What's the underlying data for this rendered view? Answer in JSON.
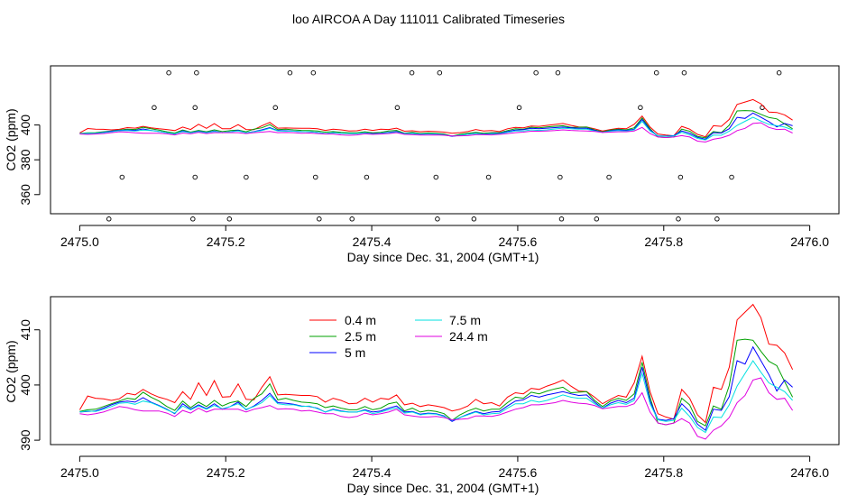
{
  "title": "loo AIRCOA A  Day 111011  Calibrated Timeseries",
  "chart_data": [
    {
      "type": "scatter",
      "xlabel": "Day since Dec. 31, 2004 (GMT+1)",
      "ylabel": "CO2 (ppm)",
      "xlim": [
        2474.96,
        2476.04
      ],
      "ylim": [
        349,
        434
      ],
      "x_ticks": [
        "2475.0",
        "2475.2",
        "2475.4",
        "2475.6",
        "2475.8",
        "2476.0"
      ],
      "y_ticks": [
        "360",
        "380",
        "400"
      ],
      "grid": false,
      "points": [
        [
          2475.04,
          346
        ],
        [
          2475.058,
          370
        ],
        [
          2475.102,
          410
        ],
        [
          2475.122,
          430
        ],
        [
          2475.155,
          346
        ],
        [
          2475.158,
          370
        ],
        [
          2475.158,
          410
        ],
        [
          2475.16,
          430
        ],
        [
          2475.205,
          346
        ],
        [
          2475.228,
          370
        ],
        [
          2475.268,
          410
        ],
        [
          2475.288,
          430
        ],
        [
          2475.32,
          430
        ],
        [
          2475.323,
          370
        ],
        [
          2475.328,
          346
        ],
        [
          2475.373,
          346
        ],
        [
          2475.393,
          370
        ],
        [
          2475.435,
          410
        ],
        [
          2475.455,
          430
        ],
        [
          2475.488,
          370
        ],
        [
          2475.49,
          346
        ],
        [
          2475.493,
          430
        ],
        [
          2475.54,
          346
        ],
        [
          2475.56,
          370
        ],
        [
          2475.602,
          410
        ],
        [
          2475.625,
          430
        ],
        [
          2475.655,
          430
        ],
        [
          2475.658,
          370
        ],
        [
          2475.66,
          346
        ],
        [
          2475.708,
          346
        ],
        [
          2475.725,
          370
        ],
        [
          2475.768,
          410
        ],
        [
          2475.79,
          430
        ],
        [
          2475.82,
          346
        ],
        [
          2475.823,
          370
        ],
        [
          2475.828,
          430
        ],
        [
          2475.873,
          346
        ],
        [
          2475.893,
          370
        ],
        [
          2475.935,
          410
        ],
        [
          2475.958,
          430
        ]
      ],
      "series": [
        {
          "name": "0.4 m",
          "color": "#ff0000",
          "values": [
            395.5,
            398,
            397.6,
            397.5,
            397.2,
            397.5,
            398.5,
            398.2,
            399.2,
            398.4,
            397.8,
            397.4,
            396.8,
            398.8,
            397.4,
            400.4,
            398.1,
            400.8,
            397.8,
            397.9,
            400.2,
            397.4,
            397.3,
            399.6,
            401.5,
            398.2,
            398.3,
            398.2,
            398.1,
            398.1,
            397.9,
            396.9,
            397.6,
            397.2,
            396.6,
            396.7,
            397.6,
            396.9,
            397.6,
            397.4,
            398.2,
            396.4,
            396.7,
            396.1,
            396.4,
            396.2,
            395.9,
            395.3,
            395.6,
            396.2,
            397.4,
            396.6,
            396.8,
            396.2,
            397.8,
            398.6,
            398.4,
            399.4,
            399.2,
            399.8,
            400.3,
            400.9,
            399.8,
            398.9,
            398.8,
            397.8,
            396.6,
            397.4,
            398.1,
            397.8,
            400.4,
            405.2,
            398.8,
            394.8,
            394.2,
            393.8,
            399.2,
            397.6,
            394.6,
            393.2,
            399.6,
            399.2,
            403.2,
            411.8,
            413.2,
            414.6,
            412.2,
            407.4,
            407.2,
            405.8,
            402.8
          ]
        },
        {
          "name": "2.5 m",
          "color": "#00a000",
          "values": [
            395.2,
            395.5,
            395.6,
            396.1,
            396.6,
            397.1,
            397.6,
            397.4,
            398.7,
            397.8,
            397.1,
            396.1,
            395.4,
            397.1,
            395.9,
            396.9,
            396.1,
            397.2,
            396.2,
            396.8,
            397.1,
            396.1,
            397.6,
            398.4,
            400.2,
            397.3,
            397.6,
            397.2,
            396.9,
            396.8,
            396.6,
            395.9,
            396.2,
            395.8,
            395.5,
            395.5,
            396.1,
            395.5,
            395.8,
            396.6,
            396.9,
            395.3,
            395.8,
            395.1,
            395.4,
            395.2,
            394.8,
            393.6,
            394.6,
            395.3,
            395.8,
            395.3,
            395.6,
            395.6,
            396.8,
            397.8,
            397.6,
            398.7,
            398.4,
            398.9,
            399.3,
            399.6,
            398.6,
            398.7,
            398.8,
            397.2,
            396.1,
            397.1,
            397.6,
            397.2,
            398.4,
            404.1,
            397.8,
            393.1,
            392.8,
            393.1,
            397.6,
            396.4,
            393.4,
            392.6,
            396.2,
            395.6,
            399.9,
            408.1,
            408.3,
            408.1,
            406.1,
            404.3,
            403.5,
            400.6,
            397.8
          ]
        },
        {
          "name": "5 m",
          "color": "#0000ff",
          "values": [
            395.1,
            395.2,
            395.3,
            395.8,
            396.4,
            396.9,
            397.1,
            396.9,
            397.7,
            396.9,
            396.3,
            395.6,
            394.8,
            396.6,
            395.6,
            396.4,
            395.7,
            396.6,
            395.6,
            396.1,
            396.9,
            395.5,
            396.2,
            397.2,
            398.5,
            396.8,
            396.7,
            396.5,
            396.2,
            396.1,
            395.8,
            395.1,
            395.6,
            395.3,
            395.1,
            395.1,
            395.5,
            395.1,
            395.3,
            395.8,
            396.2,
            395.1,
            395.2,
            394.7,
            394.9,
            394.8,
            394.4,
            393.4,
            394.1,
            394.7,
            395.2,
            394.8,
            395.1,
            395.2,
            396.2,
            397.1,
            397.3,
            398.1,
            397.8,
            398.2,
            398.5,
            398.8,
            398.4,
            398.1,
            398.2,
            396.9,
            395.8,
            396.7,
            397.2,
            396.8,
            397.6,
            403.2,
            397.1,
            393.8,
            393.6,
            393.9,
            396.6,
            395.2,
            392.9,
            391.8,
            395.6,
            395.4,
            397.9,
            404.4,
            403.8,
            406.9,
            404.4,
            401.9,
            398.9,
            400.9,
            399.6
          ]
        },
        {
          "name": "7.5 m",
          "color": "#00e0e0",
          "values": [
            395.1,
            395.3,
            395.2,
            395.6,
            396.1,
            396.7,
            396.8,
            396.5,
            397.1,
            396.8,
            396.2,
            395.5,
            394.9,
            396.2,
            395.5,
            396.2,
            395.6,
            396.3,
            395.7,
            396.1,
            396.6,
            395.6,
            396.1,
            396.8,
            398.1,
            396.6,
            396.4,
            396.4,
            396.1,
            396.2,
            395.7,
            395.1,
            395.5,
            395.2,
            395.1,
            395.1,
            395.4,
            394.8,
            395.1,
            395.5,
            395.9,
            394.9,
            395.1,
            394.6,
            394.8,
            394.7,
            394.3,
            393.6,
            394.1,
            394.6,
            395.1,
            394.6,
            394.8,
            394.9,
            395.8,
            396.6,
            396.6,
            397.2,
            396.9,
            397.2,
            397.7,
            398.2,
            397.8,
            397.6,
            397.6,
            396.6,
            395.8,
            396.4,
            396.8,
            396.5,
            397.2,
            402.1,
            396.6,
            393.7,
            393.4,
            393.6,
            395.8,
            394.3,
            392.3,
            391.4,
            394.2,
            394.1,
            396.4,
            399.8,
            402.1,
            404.4,
            402.3,
            400.4,
            399.6,
            398.8,
            397.2
          ]
        },
        {
          "name": "24.4 m",
          "color": "#e000e0",
          "values": [
            394.8,
            394.6,
            394.8,
            395.1,
            395.6,
            396.1,
            395.9,
            395.5,
            395.3,
            395.3,
            395.3,
            394.9,
            394.3,
            395.4,
            394.9,
            395.8,
            395.1,
            395.6,
            395.6,
            395.6,
            395.6,
            395.1,
            395.6,
            395.9,
            396.3,
            395.6,
            395.7,
            395.6,
            395.3,
            395.4,
            395.1,
            394.8,
            394.8,
            394.3,
            394.1,
            394.3,
            394.9,
            394.6,
            394.8,
            395.1,
            395.6,
            394.6,
            394.4,
            394.2,
            394.2,
            394.3,
            394.1,
            393.7,
            393.8,
            393.9,
            394.4,
            394.4,
            394.3,
            394.6,
            395.1,
            395.6,
            395.9,
            396.4,
            396.4,
            396.6,
            396.8,
            397.2,
            396.9,
            396.7,
            396.6,
            396.3,
            395.7,
            395.9,
            396.1,
            396.1,
            396.6,
            398.6,
            395.1,
            393.1,
            392.8,
            393.1,
            393.9,
            393.1,
            390.7,
            390.2,
            391.8,
            392.6,
            394.1,
            396.8,
            398.1,
            400.9,
            401.3,
            398.6,
            397.4,
            397.6,
            395.4
          ]
        }
      ]
    },
    {
      "type": "line",
      "xlabel": "Day since Dec. 31, 2004 (GMT+1)",
      "ylabel": "CO2 (ppm)",
      "xlim": [
        2474.96,
        2476.04
      ],
      "ylim": [
        389.2,
        416
      ],
      "x_ticks": [
        "2475.0",
        "2475.2",
        "2475.4",
        "2475.6",
        "2475.8",
        "2476.0"
      ],
      "y_ticks": [
        "390",
        "400",
        "410"
      ],
      "grid": false,
      "legend_position": "top-left",
      "legend": [
        "0.4 m",
        "2.5 m",
        "5 m",
        "7.5 m",
        "24.4 m"
      ],
      "x_start": 2475.0,
      "x_step": 0.01085
    }
  ]
}
